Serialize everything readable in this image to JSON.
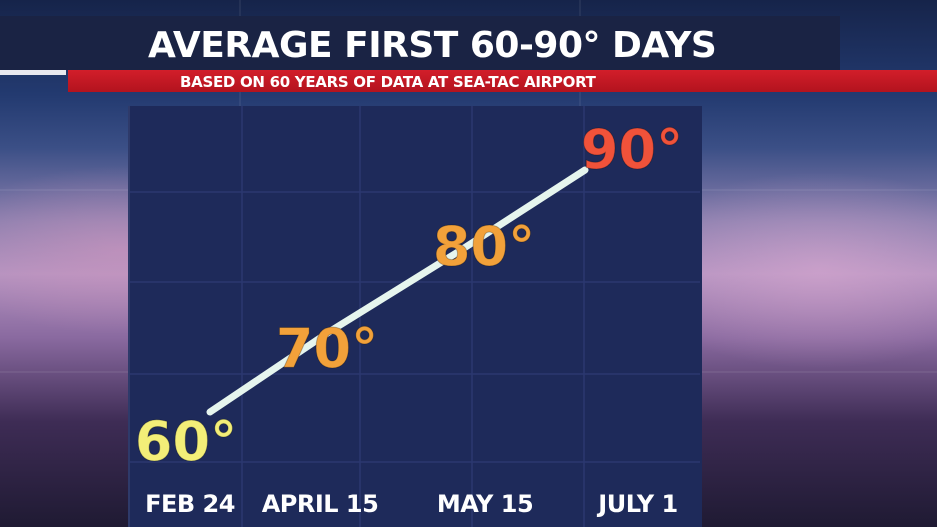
{
  "header": {
    "title": "AVERAGE FIRST 60-90° DAYS",
    "subtitle": "BASED ON 60 YEARS OF DATA AT SEA-TAC AIRPORT"
  },
  "colors": {
    "panel": "#1e2a5a",
    "line": "#e6f5ee",
    "grid": "#2b3870",
    "label_60": "#f3ee78",
    "label_70": "#f2a13a",
    "label_80": "#f2a13a",
    "label_90": "#f0523a",
    "banner_red": "#c8192a"
  },
  "chart_data": {
    "type": "line",
    "title": "AVERAGE FIRST 60-90° DAYS",
    "subtitle": "BASED ON 60 YEARS OF DATA AT SEA-TAC AIRPORT",
    "categories": [
      "FEB 24",
      "APRIL 15",
      "MAY 15",
      "JULY 1"
    ],
    "values": [
      60,
      70,
      80,
      90
    ],
    "point_labels": [
      "60°",
      "70°",
      "80°",
      "90°"
    ],
    "xlabel": "",
    "ylabel": "",
    "ylim": [
      60,
      90
    ],
    "grid": true,
    "legend": "none"
  }
}
